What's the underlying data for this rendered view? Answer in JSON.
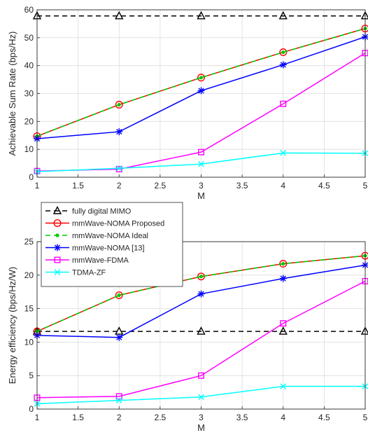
{
  "chart_data": [
    {
      "type": "line",
      "xlabel": "M",
      "ylabel": "Achievable Sum Rate (bps/Hz)",
      "xlim": [
        1,
        5
      ],
      "ylim": [
        0,
        60
      ],
      "xticks": [
        "1",
        "1.5",
        "2",
        "2.5",
        "3",
        "3.5",
        "4",
        "4.5",
        "5"
      ],
      "yticks": [
        "0",
        "10",
        "20",
        "30",
        "40",
        "50",
        "60"
      ],
      "grid": true,
      "x": [
        1,
        2,
        3,
        4,
        5
      ],
      "series": [
        {
          "name": "fully digital MIMO",
          "values": [
            57.8,
            57.8,
            57.8,
            57.8,
            57.8
          ],
          "color": "#000000",
          "dash": "7,5",
          "marker": "triangle"
        },
        {
          "name": "mmWave-NOMA Proposed",
          "values": [
            14.7,
            26.0,
            35.7,
            44.8,
            53.3
          ],
          "color": "#ff0000",
          "dash": "",
          "marker": "circle"
        },
        {
          "name": "mmWave-NOMA Ideal",
          "values": [
            14.7,
            26.0,
            35.7,
            44.8,
            53.3
          ],
          "color": "#00cc00",
          "dash": "7,5",
          "marker": "dot"
        },
        {
          "name": "mmWave-NOMA [13]",
          "values": [
            13.8,
            16.3,
            31.0,
            40.3,
            50.3
          ],
          "color": "#0000ff",
          "dash": "",
          "marker": "star"
        },
        {
          "name": "mmWave-FDMA",
          "values": [
            2.2,
            2.9,
            9.0,
            26.3,
            44.5
          ],
          "color": "#ff00ff",
          "dash": "",
          "marker": "square"
        },
        {
          "name": "TDMA-ZF",
          "values": [
            2.0,
            3.2,
            4.7,
            8.7,
            8.6
          ],
          "color": "#00ffff",
          "dash": "",
          "marker": "x"
        }
      ]
    },
    {
      "type": "line",
      "xlabel": "M",
      "ylabel": "Energy efficiency (bps/Hz/W)",
      "xlim": [
        1,
        5
      ],
      "ylim": [
        0,
        25
      ],
      "xticks": [
        "1",
        "1.5",
        "2",
        "2.5",
        "3",
        "3.5",
        "4",
        "4.5",
        "5"
      ],
      "yticks": [
        "0",
        "5",
        "10",
        "15",
        "20",
        "25"
      ],
      "grid": true,
      "legend": "top-left",
      "x": [
        1,
        2,
        3,
        4,
        5
      ],
      "series": [
        {
          "name": "fully digital MIMO",
          "values": [
            11.6,
            11.6,
            11.6,
            11.6,
            11.6
          ],
          "color": "#000000",
          "dash": "7,5",
          "marker": "triangle"
        },
        {
          "name": "mmWave-NOMA Proposed",
          "values": [
            11.6,
            17.0,
            19.8,
            21.7,
            22.9
          ],
          "color": "#ff0000",
          "dash": "",
          "marker": "circle"
        },
        {
          "name": "mmWave-NOMA Ideal",
          "values": [
            11.6,
            17.0,
            19.8,
            21.7,
            22.9
          ],
          "color": "#00cc00",
          "dash": "7,5",
          "marker": "dot"
        },
        {
          "name": "mmWave-NOMA [13]",
          "values": [
            11.0,
            10.7,
            17.2,
            19.5,
            21.5
          ],
          "color": "#0000ff",
          "dash": "",
          "marker": "star"
        },
        {
          "name": "mmWave-FDMA",
          "values": [
            1.7,
            1.9,
            5.0,
            12.8,
            19.1
          ],
          "color": "#ff00ff",
          "dash": "",
          "marker": "square"
        },
        {
          "name": "TDMA-ZF",
          "values": [
            0.8,
            1.3,
            1.8,
            3.4,
            3.4
          ],
          "color": "#00ffff",
          "dash": "",
          "marker": "x"
        }
      ]
    }
  ]
}
